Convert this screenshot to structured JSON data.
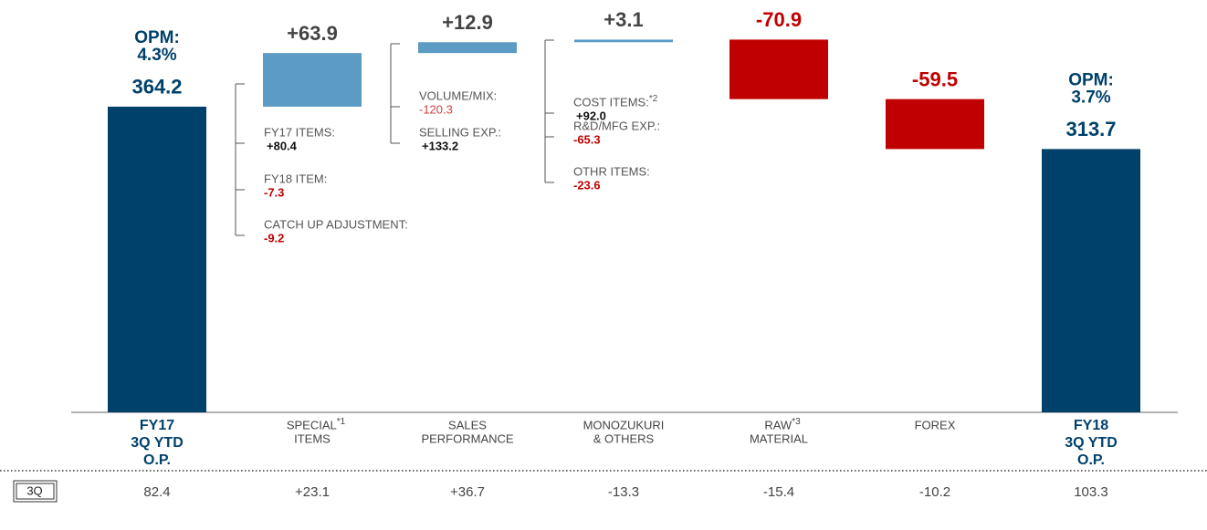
{
  "chart_data": {
    "type": "waterfall",
    "categories": [
      [
        "FY17",
        "3Q YTD",
        "O.P."
      ],
      [
        "SPECIAL",
        "ITEMS"
      ],
      [
        "SALES",
        "PERFORMANCE"
      ],
      [
        "MONOZUKURI",
        "& OTHERS"
      ],
      [
        "RAW",
        "MATERIAL"
      ],
      [
        "FOREX"
      ],
      [
        "FY18",
        "3Q YTD",
        "O.P."
      ]
    ],
    "category_notes": [
      null,
      "*1",
      null,
      null,
      "*3",
      null,
      null
    ],
    "values": [
      364.2,
      63.9,
      12.9,
      3.1,
      -70.9,
      -59.5,
      313.7
    ],
    "value_labels": [
      "364.2",
      "+63.9",
      "+12.9",
      "+3.1",
      "-70.9",
      "-59.5",
      "313.7"
    ],
    "bar_kinds": [
      "total",
      "delta",
      "delta",
      "delta",
      "delta",
      "delta",
      "total"
    ],
    "colors": {
      "total": "#00416b",
      "increase": "#5b9bc4",
      "decrease": "#c00000"
    },
    "annotations": [
      {
        "bar": 0,
        "lines": [
          "OPM:",
          "4.3%"
        ]
      },
      {
        "bar": 6,
        "lines": [
          "OPM:",
          "3.7%"
        ]
      }
    ],
    "breakdowns": [
      {
        "bar": 1,
        "items": [
          {
            "label": "FY17 ITEMS:",
            "value": "+80.4"
          },
          {
            "label": "FY18 ITEM:",
            "value": "-7.3"
          },
          {
            "label": "CATCH UP ADJUSTMENT:",
            "value": "-9.2"
          }
        ]
      },
      {
        "bar": 2,
        "items": [
          {
            "label": "VOLUME/MIX:",
            "value": "-120.3"
          },
          {
            "label": "SELLING EXP.:",
            "value": "+133.2"
          }
        ]
      },
      {
        "bar": 3,
        "items": [
          {
            "label": "COST ITEMS:",
            "note": "*2",
            "value": "+92.0"
          },
          {
            "label": "R&D/MFG EXP.:",
            "value": "-65.3"
          },
          {
            "label": "OTHR ITEMS:",
            "value": "-23.6"
          }
        ]
      }
    ],
    "quarter_row": {
      "label": "3Q",
      "values": [
        "82.4",
        "+23.1",
        "+36.7",
        "-13.3",
        "-15.4",
        "-10.2",
        "103.3"
      ]
    }
  }
}
